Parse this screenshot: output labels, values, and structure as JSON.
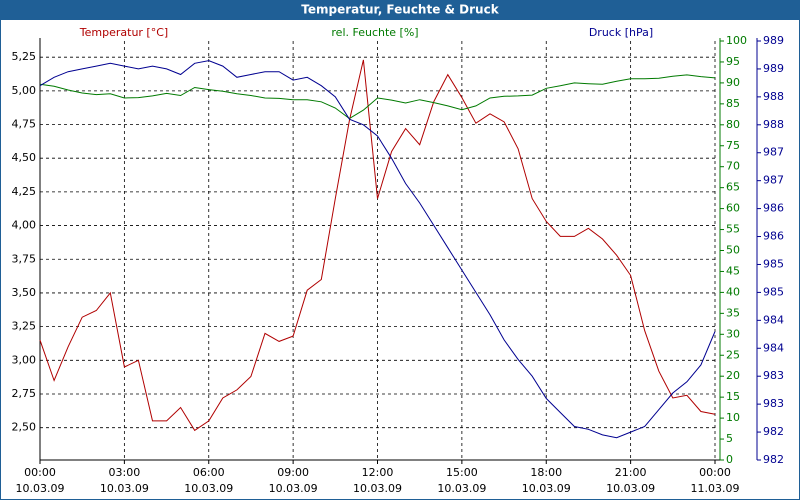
{
  "chart_data": {
    "type": "line",
    "title": "Temperatur, Feuchte & Druck",
    "x": [
      0,
      0.5,
      1,
      1.5,
      2,
      2.5,
      3,
      3.5,
      4,
      4.5,
      5,
      5.5,
      6,
      6.5,
      7,
      7.5,
      8,
      8.5,
      9,
      9.5,
      10,
      10.5,
      11,
      11.5,
      12,
      12.5,
      13,
      13.5,
      14,
      14.5,
      15,
      15.5,
      16,
      16.5,
      17,
      17.5,
      18,
      18.5,
      19,
      19.5,
      20,
      20.5,
      21,
      21.5,
      22,
      22.5,
      23,
      23.5,
      24
    ],
    "xlim": [
      0,
      24
    ],
    "xticks": [
      {
        "value": 0,
        "label": [
          "00:00",
          "10.03.09"
        ]
      },
      {
        "value": 3,
        "label": [
          "03:00",
          "10.03.09"
        ]
      },
      {
        "value": 6,
        "label": [
          "06:00",
          "10.03.09"
        ]
      },
      {
        "value": 9,
        "label": [
          "09:00",
          "10.03.09"
        ]
      },
      {
        "value": 12,
        "label": [
          "12:00",
          "10.03.09"
        ]
      },
      {
        "value": 15,
        "label": [
          "15:00",
          "10.03.09"
        ]
      },
      {
        "value": 18,
        "label": [
          "18:00",
          "10.03.09"
        ]
      },
      {
        "value": 21,
        "label": [
          "21:00",
          "10.03.09"
        ]
      },
      {
        "value": 24,
        "label": [
          "00:00",
          "11.03.09"
        ]
      }
    ],
    "ylim": [
      2.26,
      5.37
    ],
    "yticks": [
      {
        "value": 2.5,
        "label": "2,50"
      },
      {
        "value": 2.75,
        "label": "2,75"
      },
      {
        "value": 3.0,
        "label": "3,00"
      },
      {
        "value": 3.25,
        "label": "3,25"
      },
      {
        "value": 3.5,
        "label": "3,50"
      },
      {
        "value": 3.75,
        "label": "3,75"
      },
      {
        "value": 4.0,
        "label": "4,00"
      },
      {
        "value": 4.25,
        "label": "4,25"
      },
      {
        "value": 4.5,
        "label": "4,50"
      },
      {
        "value": 4.75,
        "label": "4,75"
      },
      {
        "value": 5.0,
        "label": "5,00"
      },
      {
        "value": 5.25,
        "label": "5,25"
      }
    ],
    "y2lim": [
      0,
      100
    ],
    "y2ticks": [
      0,
      5,
      10,
      15,
      20,
      25,
      30,
      35,
      40,
      45,
      50,
      55,
      60,
      65,
      70,
      75,
      80,
      85,
      90,
      95,
      100
    ],
    "y3lim": [
      981.9,
      989.4
    ],
    "y3ticks": [
      {
        "value": 981.9,
        "label": "982"
      },
      {
        "value": 982.4,
        "label": "982"
      },
      {
        "value": 982.9,
        "label": "983"
      },
      {
        "value": 983.4,
        "label": "983"
      },
      {
        "value": 983.9,
        "label": "984"
      },
      {
        "value": 984.4,
        "label": "984"
      },
      {
        "value": 984.9,
        "label": "985"
      },
      {
        "value": 985.4,
        "label": "985"
      },
      {
        "value": 985.9,
        "label": "986"
      },
      {
        "value": 986.4,
        "label": "986"
      },
      {
        "value": 986.9,
        "label": "987"
      },
      {
        "value": 987.4,
        "label": "987"
      },
      {
        "value": 987.9,
        "label": "988"
      },
      {
        "value": 988.4,
        "label": "988"
      },
      {
        "value": 988.9,
        "label": "989"
      },
      {
        "value": 989.4,
        "label": "989"
      }
    ],
    "grid": true,
    "series": [
      {
        "name": "Temperatur [°C]",
        "color": "#b00000",
        "axis": "y",
        "values": [
          3.15,
          2.85,
          3.1,
          3.32,
          3.37,
          3.5,
          2.95,
          3.0,
          2.55,
          2.55,
          2.65,
          2.48,
          2.55,
          2.72,
          2.78,
          2.88,
          3.2,
          3.14,
          3.18,
          3.52,
          3.6,
          4.2,
          4.78,
          5.23,
          4.2,
          4.55,
          4.72,
          4.6,
          4.92,
          5.12,
          4.95,
          4.76,
          4.83,
          4.77,
          4.57,
          4.2,
          4.03,
          3.92,
          3.92,
          3.98,
          3.9,
          3.78,
          3.63,
          3.22,
          2.92,
          2.72,
          2.74,
          2.62,
          2.6
        ]
      },
      {
        "name": "rel. Feuchte [%]",
        "color": "#007a00",
        "axis": "y2",
        "values": [
          89.7,
          89.2,
          88.3,
          87.6,
          87.2,
          87.4,
          86.4,
          86.5,
          86.9,
          87.5,
          87.0,
          88.9,
          88.4,
          88.0,
          87.4,
          87.0,
          86.4,
          86.3,
          86.0,
          86.0,
          85.5,
          84.0,
          81.5,
          83.5,
          86.4,
          85.9,
          85.2,
          86.0,
          85.3,
          84.5,
          83.6,
          84.5,
          86.4,
          86.8,
          86.9,
          87.1,
          88.7,
          89.3,
          90.0,
          89.8,
          89.7,
          90.4,
          91.0,
          91.0,
          91.1,
          91.6,
          91.9,
          91.5,
          91.2
        ]
      },
      {
        "name": "Druck [hPa]",
        "color": "#000090",
        "axis": "y3",
        "values": [
          988.6,
          988.75,
          988.85,
          988.9,
          988.95,
          989.0,
          988.95,
          988.9,
          988.95,
          988.9,
          988.8,
          989.0,
          989.05,
          988.95,
          988.75,
          988.8,
          988.85,
          988.85,
          988.7,
          988.75,
          988.6,
          988.4,
          988.0,
          987.9,
          987.7,
          987.3,
          986.85,
          986.5,
          986.1,
          985.7,
          985.3,
          984.9,
          984.5,
          984.05,
          983.7,
          983.4,
          983.0,
          982.75,
          982.5,
          982.45,
          982.35,
          982.3,
          982.4,
          982.5,
          982.8,
          983.1,
          983.3,
          983.6,
          984.2
        ]
      }
    ]
  }
}
